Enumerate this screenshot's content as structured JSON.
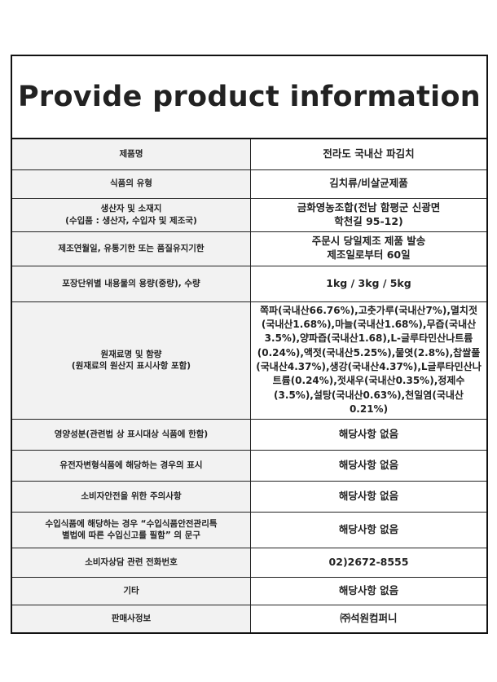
{
  "title": "Provide product information",
  "rows": [
    {
      "label": "제품명",
      "value": "전라도 국내산 파김치"
    },
    {
      "label": "식품의 유형",
      "value": "김치류/비살균제품"
    },
    {
      "label": "생산자 및 소재지\n(수입품 : 생산자, 수입자 및 제조국)",
      "value": "금화영농조합(전남 함평군 신광면\n학천길 95-12)"
    },
    {
      "label": "제조연월일, 유통기한 또는 품질유지기한",
      "value": "주문시 당일제조 제품 발송\n제조일로부터 60일"
    },
    {
      "label": "포장단위별 내용물의 용량(중량), 수량",
      "value": "1kg / 3kg / 5kg"
    },
    {
      "label": "원재료명 및 함량\n(원재료의 원산지 표시사항 포함)",
      "value": "쪽파(국내산66.76%),고춧가루(국내산7%),멸치젓(국내산1.68%),마늘(국내산1.68%),무즙(국내산3.5%),양파즙(국내산1.68),L-글루타민산나트륨(0.24%),액젓(국내산5.25%),물엿(2.8%),찹쌀풀(국내산4.37%),생강(국내산4.37%),L글루타민산나트륨(0.24%),젓새우(국내산0.35%),정제수(3.5%),설탕(국내산0.63%),천일염(국내산0.21%)"
    },
    {
      "label": "영양성분(관련법 상 표시대상 식품에 한함)",
      "value": "해당사항 없음"
    },
    {
      "label": "유전자변형식품에 해당하는 경우의 표시",
      "value": "해당사항 없음"
    },
    {
      "label": "소비자안전을 위한 주의사항",
      "value": "해당사항 없음"
    },
    {
      "label": "수입식품에 해당하는 경우 “수입식품안전관리특\n별법에 따른 수입신고를 필함” 의 문구",
      "value": "해당사항 없음"
    },
    {
      "label": "소비자상담 관련 전화번호",
      "value": "02)2672-8555"
    },
    {
      "label": "기타",
      "value": "해당사항 없음"
    },
    {
      "label": "판매사정보",
      "value": "㈜석원컴퍼니"
    }
  ]
}
